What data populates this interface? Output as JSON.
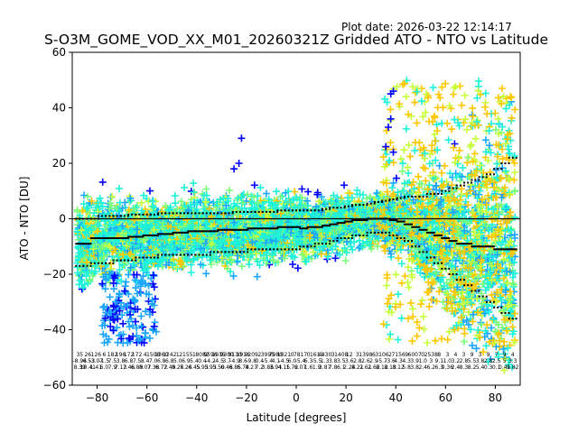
{
  "plot_date": "Plot date: 2026-03-22 12:14:17",
  "chart_data": {
    "type": "scatter",
    "title": "S-O3M_GOME_VOD_XX_M01_20260321Z Gridded ATO - NTO vs Latitude",
    "xlabel": "Latitude [degrees]",
    "ylabel": "ATO - NTO [DU]",
    "xlim": [
      -90,
      90
    ],
    "ylim": [
      -60,
      60
    ],
    "xticks": [
      -80,
      -60,
      -40,
      -20,
      0,
      20,
      40,
      60,
      80
    ],
    "yticks": [
      -60,
      -40,
      -20,
      0,
      20,
      40,
      60
    ],
    "xtick_labels": [
      "−80",
      "−60",
      "−40",
      "−20",
      "0",
      "20",
      "40",
      "60",
      "80"
    ],
    "ytick_labels": [
      "−60",
      "−40",
      "−20",
      "0",
      "20",
      "40",
      "60"
    ],
    "zero_line": 0,
    "colors": {
      "cyan": "#1ef2d8",
      "green": "#7bff7b",
      "yellow_green": "#c8ff3c",
      "orange": "#ffc800",
      "sky": "#1aa6ff",
      "blue": "#0000ff",
      "mean": "#000000"
    },
    "zonal_mean": {
      "lat": [
        -87,
        -84,
        -81,
        -78,
        -75,
        -72,
        -69,
        -66,
        -63,
        -60,
        -57,
        -54,
        -51,
        -48,
        -45,
        -42,
        -39,
        -36,
        -33,
        -30,
        -27,
        -24,
        -21,
        -18,
        -15,
        -12,
        -9,
        -6,
        -3,
        0,
        3,
        6,
        9,
        12,
        15,
        18,
        21,
        24,
        27,
        30,
        33,
        36,
        39,
        42,
        45,
        48,
        51,
        54,
        57,
        60,
        63,
        66,
        69,
        72,
        75,
        78,
        81,
        84,
        87
      ],
      "mean": [
        -9,
        -9,
        -7,
        -7,
        -7,
        -7,
        -7,
        -6.5,
        -6.5,
        -6,
        -6,
        -5.5,
        -5.5,
        -5,
        -5,
        -4.5,
        -4.5,
        -4.5,
        -4.5,
        -4,
        -4,
        -4,
        -4,
        -3.5,
        -3.5,
        -3.5,
        -3.5,
        -3,
        -3,
        -3,
        -3.5,
        -3,
        -3,
        -2.5,
        -2,
        -1.5,
        -1,
        -0.5,
        -0.5,
        0,
        0,
        0,
        -0.5,
        -1,
        -2,
        -3,
        -4,
        -5,
        -6,
        -7,
        -8,
        -9,
        -9,
        -10,
        -10,
        -10,
        -11,
        -11,
        -11
      ],
      "upper": [
        0,
        0,
        0,
        1,
        1,
        1,
        1,
        1.5,
        1.5,
        1.5,
        1.5,
        2,
        2,
        2,
        2,
        2,
        2,
        2,
        2,
        2,
        2,
        2.5,
        2.5,
        2.5,
        2.5,
        2.5,
        2.5,
        3,
        3,
        3,
        3,
        3,
        3,
        3.5,
        4,
        4,
        4.5,
        5,
        5,
        5.5,
        6,
        6.5,
        7,
        7.5,
        8,
        8,
        8,
        9,
        9,
        10,
        11,
        12,
        13,
        14,
        15,
        16,
        18,
        20,
        22
      ],
      "lower": [
        -17,
        -17,
        -16,
        -16,
        -16,
        -15,
        -15,
        -15,
        -14,
        -14,
        -14,
        -13,
        -13,
        -13,
        -13,
        -13,
        -13,
        -13,
        -12,
        -12,
        -12,
        -12,
        -12,
        -11,
        -11,
        -11,
        -11,
        -11,
        -11,
        -11,
        -10,
        -10,
        -9,
        -9,
        -8,
        -7,
        -7,
        -6,
        -6,
        -5,
        -5,
        -5,
        -6,
        -7,
        -8,
        -10,
        -12,
        -14,
        -16,
        -18,
        -20,
        -22,
        -24,
        -26,
        -28,
        -30,
        -32,
        -34,
        -36
      ]
    },
    "stats_row1": [
      "35",
      "26",
      "126",
      "6",
      "182",
      "196",
      "172",
      "172",
      "4",
      "1508",
      "1360",
      "1242",
      "1",
      "2155",
      "1",
      "8082",
      "9596",
      "1935",
      "9300",
      "9130",
      "1916",
      "9209",
      "2",
      "3995",
      "7980",
      "1021",
      "0",
      "7817",
      "0",
      "1611",
      "4430",
      "3",
      "1408",
      "12",
      "3",
      "1398",
      "6",
      "3106",
      "2",
      "7156",
      "9",
      "6007",
      "0",
      "2538",
      "8",
      "3",
      "4",
      "3",
      "9",
      "3",
      "9",
      "7",
      "9",
      "4"
    ],
    "stats_row2": [
      "-8.94",
      "-6.53",
      "-3.07",
      "-1.5",
      "7.5",
      "3.8",
      "6.8",
      "7.5",
      "8.4",
      "7.0",
      "6.8",
      "6.8",
      "5.0",
      "6.9",
      "5.4",
      "0.4",
      "-4.2",
      "-4.5",
      "3.7",
      "-4.9",
      "8.6",
      "-9.8",
      "0.4",
      "-5.4",
      "4.1",
      "-4.5",
      "6.0",
      "-5.4",
      "6.3",
      "-5.5",
      "1.3",
      "3.8",
      "3.5",
      "3.6",
      "2.8",
      "2.6",
      "2.9",
      "-5.7",
      "-3.6",
      "4.3",
      "4.3",
      "3.9",
      "1.0",
      "3",
      "9.1",
      "1.0",
      "3.2",
      "2.8",
      "5.5",
      "3.8",
      "2.8",
      "2.5",
      "5",
      "3.3"
    ],
    "stats_row3": [
      "8.39",
      "10.41",
      "1.41",
      "6.0",
      "7.9",
      "7.13",
      "7.46",
      "6.89",
      "8.07",
      "7.38",
      "6.72",
      "7.49",
      "8.26",
      "7.24",
      "6.45",
      "5.93",
      "5.93",
      "5.50",
      "6.48",
      "6.85",
      "6.74",
      "8.27",
      "7.2",
      "3.86",
      "3.94",
      "4.15",
      "1.72",
      "6.07",
      "1.6",
      "1.9",
      "3.87",
      "7.8",
      "6.1",
      "2.24",
      "8.21",
      "2.61",
      "2.62",
      "8.12",
      "8.13",
      "8.12",
      "5.8",
      "3.8",
      "2.4",
      "6.2",
      "6.3",
      "0.36",
      "2.4",
      "8.3",
      "8.2",
      "5.4",
      "0.3",
      "0.1",
      "0.41",
      "9.82"
    ]
  }
}
